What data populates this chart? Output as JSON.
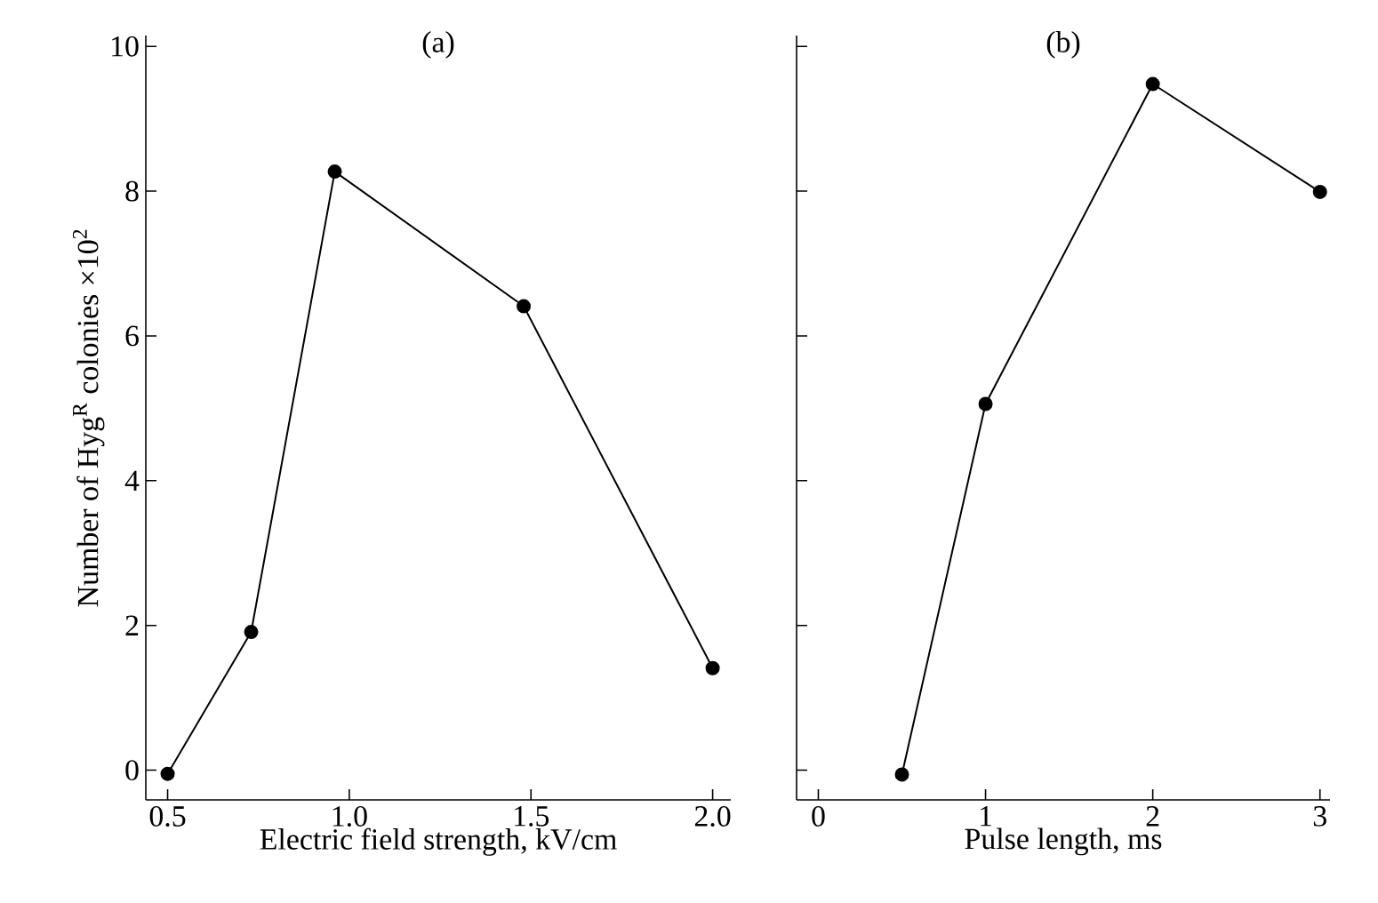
{
  "chart_data": [
    {
      "type": "line",
      "title": "(a)",
      "xlabel": "Electric field strength, kV/cm",
      "ylabel": "Number of Hyg$^{R}$ colonies ×10$^{2}$",
      "x": [
        0.5,
        0.73,
        0.96,
        1.48,
        2.0
      ],
      "series": [
        {
          "color": "#000000",
          "values": [
            -0.05,
            1.91,
            8.27,
            6.41,
            1.41
          ]
        }
      ],
      "marker": "circle",
      "line_style": "solid",
      "xlim": [
        0.44,
        2.05
      ],
      "ylim": [
        -0.41,
        10.15
      ],
      "xticks": [
        0.5,
        {
          "value": 1,
          "label": "1.0"
        },
        1.5,
        {
          "value": 2,
          "label": "2.0"
        }
      ],
      "yticks": [
        0,
        2,
        4,
        6,
        8,
        10
      ]
    },
    {
      "type": "line",
      "title": "(b)",
      "xlabel": "Pulse length, ms",
      "x": [
        0.5,
        1,
        2,
        3
      ],
      "series": [
        {
          "color": "#000000",
          "values": [
            -0.06,
            5.06,
            9.48,
            7.99
          ]
        }
      ],
      "marker": "circle",
      "line_style": "solid",
      "xlim": [
        -0.13,
        3.06
      ],
      "ylim": [
        -0.41,
        10.15
      ],
      "xticks": [
        0,
        1,
        2,
        3
      ],
      "yticks": [
        0,
        2,
        4,
        6,
        8,
        10
      ],
      "tick_labels": "x"
    }
  ]
}
